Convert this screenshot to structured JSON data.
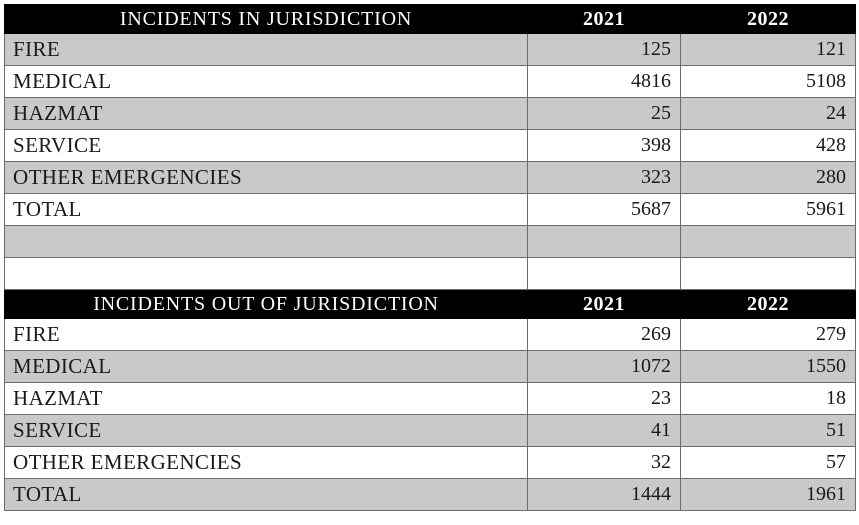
{
  "colors": {
    "header_bg": "#000000",
    "header_text": "#ffffff",
    "band_gray": "#c9c9c9",
    "band_white": "#ffffff",
    "border": "#6b6b6b",
    "body_text": "#1a1a1a"
  },
  "in_jurisdiction": {
    "title": "INCIDENTS IN JURISDICTION",
    "year_columns": [
      "2021",
      "2022"
    ],
    "rows": [
      {
        "label": "FIRE",
        "y2021": "125",
        "y2022": "121"
      },
      {
        "label": "MEDICAL",
        "y2021": "4816",
        "y2022": "5108"
      },
      {
        "label": "HAZMAT",
        "y2021": "25",
        "y2022": "24"
      },
      {
        "label": "SERVICE",
        "y2021": "398",
        "y2022": "428"
      },
      {
        "label": "OTHER EMERGENCIES",
        "y2021": "323",
        "y2022": "280"
      },
      {
        "label": "TOTAL",
        "y2021": "5687",
        "y2022": "5961"
      }
    ]
  },
  "out_jurisdiction": {
    "title": "INCIDENTS OUT OF JURISDICTION",
    "year_columns": [
      "2021",
      "2022"
    ],
    "rows": [
      {
        "label": "FIRE",
        "y2021": "269",
        "y2022": "279"
      },
      {
        "label": "MEDICAL",
        "y2021": "1072",
        "y2022": "1550"
      },
      {
        "label": "HAZMAT",
        "y2021": "23",
        "y2022": "18"
      },
      {
        "label": "SERVICE",
        "y2021": "41",
        "y2022": "51"
      },
      {
        "label": "OTHER EMERGENCIES",
        "y2021": "32",
        "y2022": "57"
      },
      {
        "label": "TOTAL",
        "y2021": "1444",
        "y2022": "1961"
      }
    ]
  }
}
